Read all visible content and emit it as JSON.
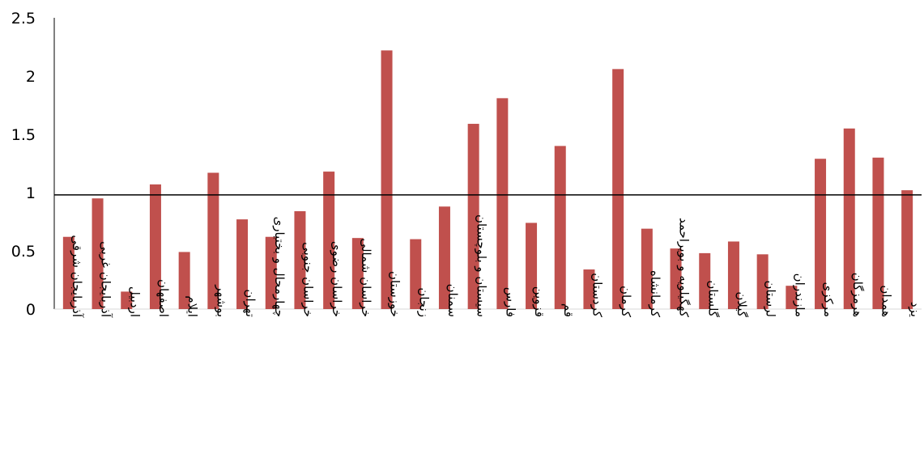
{
  "chart_data": {
    "type": "bar",
    "title": "",
    "xlabel": "",
    "ylabel": "",
    "ylim": [
      0,
      2.5
    ],
    "yticks": [
      "0",
      "0.5",
      "1",
      "1.5",
      "2",
      "2.5"
    ],
    "reference_line": 0.98,
    "grid": false,
    "legend": "none",
    "categories": [
      "آذربایجان شرقی",
      "آذربایجان غربی",
      "اردبیل",
      "اصفهان",
      "ایلام",
      "بوشهر",
      "تهران",
      "چهارمحال و بختیاری",
      "خراسان جنوبی",
      "خراسان رضوی",
      "خراسان شمالی",
      "خوزستان",
      "زنجان",
      "سمنان",
      "سیستان و بلوچستان",
      "فارس",
      "قزوین",
      "قم",
      "کردستان",
      "کرمان",
      "کرمانشاه",
      "کهگیلویه و بویراحمد",
      "گلستان",
      "گیلان",
      "لرستان",
      "مازندران",
      "مرکزی",
      "هرمزگان",
      "همدان",
      "یزد"
    ],
    "series": [
      {
        "values": [
          0.62,
          0.95,
          0.15,
          1.07,
          0.49,
          1.17,
          0.77,
          0.62,
          0.84,
          1.18,
          0.61,
          2.22,
          0.6,
          0.88,
          1.59,
          1.81,
          0.74,
          1.4,
          0.34,
          2.06,
          0.69,
          0.52,
          0.48,
          0.58,
          0.47,
          0.2,
          1.29,
          1.55,
          1.3,
          1.02
        ]
      }
    ]
  },
  "colors": {
    "bar": "#c0504d",
    "axis": "#000000",
    "reference_line": "#000000"
  }
}
